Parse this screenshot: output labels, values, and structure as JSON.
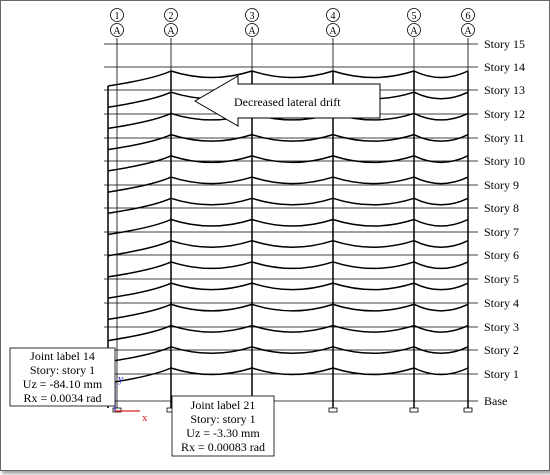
{
  "grid": {
    "columns": [
      {
        "number": "1",
        "letter": "A"
      },
      {
        "number": "2",
        "letter": "A"
      },
      {
        "number": "3",
        "letter": "A"
      },
      {
        "number": "4",
        "letter": "A"
      },
      {
        "number": "5",
        "letter": "A"
      },
      {
        "number": "6",
        "letter": "A"
      }
    ],
    "stories": [
      "Story 15",
      "Story 14",
      "Story 13",
      "Story 12",
      "Story 11",
      "Story 10",
      "Story 9",
      "Story 8",
      "Story 7",
      "Story 6",
      "Story 5",
      "Story 4",
      "Story 3",
      "Story 2",
      "Story 1",
      "Base"
    ]
  },
  "annotation": {
    "label": "Decreased lateral drift"
  },
  "joints": [
    {
      "lines": [
        "Joint label 14",
        "Story: story 1",
        "Uz = -84.10 mm",
        "Rx = 0.0034 rad"
      ]
    },
    {
      "lines": [
        "Joint label 21",
        "Story: story 1",
        "Uz = -3.30 mm",
        "Rx = 0.00083 rad"
      ]
    }
  ],
  "axes": {
    "y_label": "y",
    "x_label": "x",
    "y_color": "#2222cc",
    "x_color": "#dd2222"
  }
}
